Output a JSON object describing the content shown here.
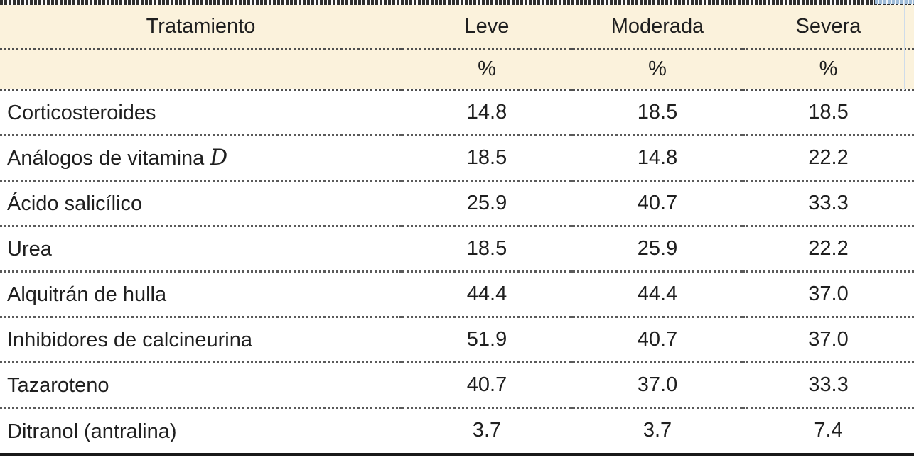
{
  "table": {
    "columns": [
      "Tratamiento",
      "Leve",
      "Moderada",
      "Severa"
    ],
    "unit_row": [
      "%",
      "%",
      "%"
    ],
    "rows": [
      {
        "name": "Corticosteroides",
        "name_math": "",
        "leve": "14.8",
        "moderada": "18.5",
        "severa": "18.5"
      },
      {
        "name": "Análogos de vitamina ",
        "name_math": "D",
        "leve": "18.5",
        "moderada": "14.8",
        "severa": "22.2"
      },
      {
        "name": "Ácido salicílico",
        "name_math": "",
        "leve": "25.9",
        "moderada": "40.7",
        "severa": "33.3"
      },
      {
        "name": "Urea",
        "name_math": "",
        "leve": "18.5",
        "moderada": "25.9",
        "severa": "22.2"
      },
      {
        "name": "Alquitrán de hulla",
        "name_math": "",
        "leve": "44.4",
        "moderada": "44.4",
        "severa": "37.0"
      },
      {
        "name": "Inhibidores de calcineurina",
        "name_math": "",
        "leve": "51.9",
        "moderada": "40.7",
        "severa": "37.0"
      },
      {
        "name": "Tazaroteno",
        "name_math": "",
        "leve": "40.7",
        "moderada": "37.0",
        "severa": "33.3"
      },
      {
        "name": "Ditranol (antralina)",
        "name_math": "",
        "leve": "3.7",
        "moderada": "3.7",
        "severa": "7.4"
      }
    ],
    "colors": {
      "header_bg": "#FBF2DC",
      "top_rule": "#2e2e2e",
      "row_separator": "#5a5a5a",
      "bottom_rule": "#191919",
      "artifact_blue": "#9fbcd8"
    }
  }
}
